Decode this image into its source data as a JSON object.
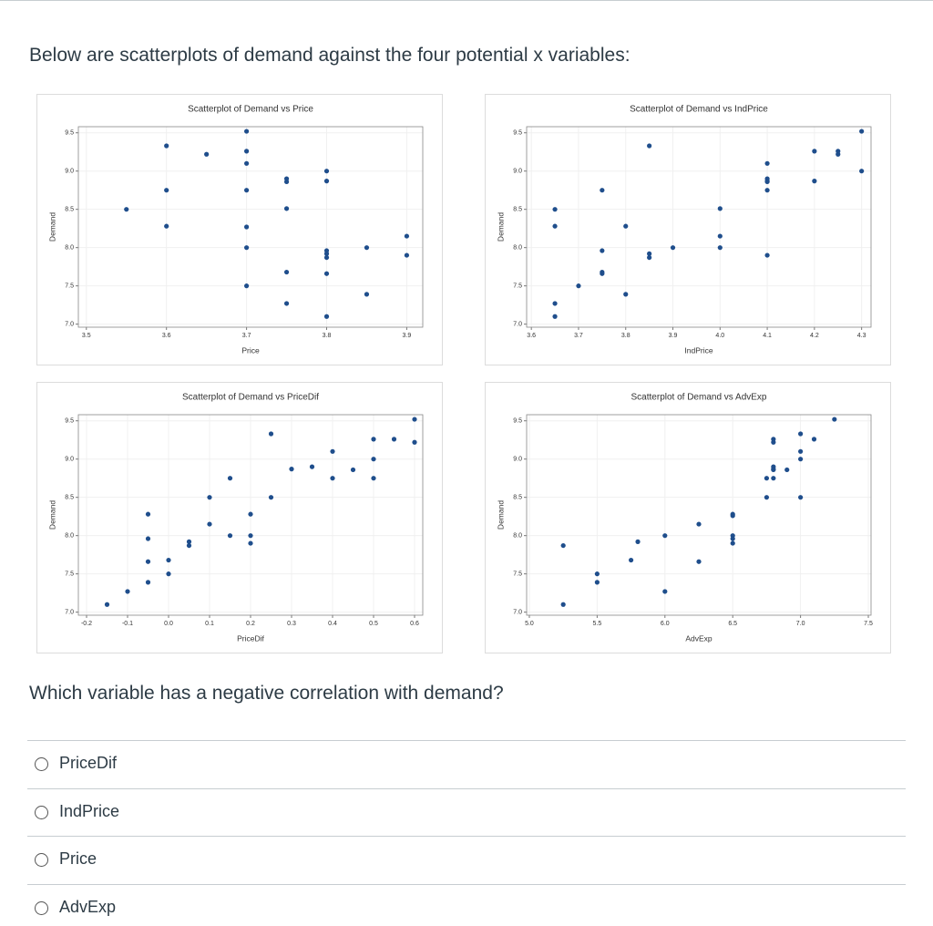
{
  "intro": "Below are scatterplots of demand against the four potential x variables:",
  "question": "Which variable has a negative correlation with demand?",
  "options": [
    "PriceDif",
    "IndPrice",
    "Price",
    "AdvExp"
  ],
  "chart_data": [
    {
      "type": "scatter",
      "title": "Scatterplot of Demand vs Price",
      "xlabel": "Price",
      "ylabel": "Demand",
      "color": "#1f4e8c",
      "grid": true,
      "x": [
        3.55,
        3.6,
        3.6,
        3.6,
        3.65,
        3.7,
        3.7,
        3.7,
        3.7,
        3.7,
        3.7,
        3.7,
        3.75,
        3.75,
        3.75,
        3.75,
        3.75,
        3.8,
        3.8,
        3.8,
        3.8,
        3.8,
        3.8,
        3.8,
        3.85,
        3.85,
        3.9,
        3.9
      ],
      "values": [
        8.5,
        9.33,
        8.75,
        8.28,
        9.22,
        9.52,
        9.26,
        9.1,
        8.75,
        8.27,
        8.0,
        7.5,
        8.9,
        8.86,
        8.51,
        7.68,
        7.27,
        9.0,
        8.87,
        7.96,
        7.92,
        7.87,
        7.66,
        7.1,
        8.0,
        7.39,
        8.15,
        7.9
      ],
      "xlim": [
        3.49,
        3.92
      ],
      "xticks": [
        3.5,
        3.6,
        3.7,
        3.8,
        3.9
      ],
      "ylim": [
        6.96,
        9.58
      ],
      "yticks": [
        {
          "value": 7,
          "label": "7.0"
        },
        7.5,
        {
          "value": 8,
          "label": "8.0"
        },
        8.5,
        {
          "value": 9,
          "label": "9.0"
        },
        9.5
      ]
    },
    {
      "type": "scatter",
      "title": "Scatterplot of Demand vs IndPrice",
      "xlabel": "IndPrice",
      "ylabel": "Demand",
      "color": "#1f4e8c",
      "grid": true,
      "x": [
        3.65,
        3.65,
        3.65,
        3.65,
        3.7,
        3.75,
        3.75,
        3.75,
        3.75,
        3.8,
        3.8,
        3.85,
        3.85,
        3.85,
        3.9,
        4.0,
        4.0,
        4.0,
        4.1,
        4.1,
        4.1,
        4.1,
        4.1,
        4.1,
        4.2,
        4.2,
        4.25,
        4.25,
        4.3,
        4.3
      ],
      "values": [
        8.5,
        8.28,
        7.27,
        7.1,
        7.5,
        8.75,
        7.96,
        7.68,
        7.66,
        8.28,
        7.39,
        9.33,
        7.92,
        7.87,
        8.0,
        8.51,
        8.15,
        8.0,
        9.1,
        8.9,
        8.87,
        8.86,
        8.75,
        7.9,
        9.26,
        8.87,
        9.26,
        9.22,
        9.52,
        9.0
      ],
      "xlim": [
        3.59,
        4.32
      ],
      "xticks": [
        3.6,
        3.7,
        3.8,
        3.9,
        {
          "value": 4,
          "label": "4.0"
        },
        4.1,
        4.2,
        4.3
      ],
      "ylim": [
        6.96,
        9.58
      ],
      "yticks": [
        {
          "value": 7,
          "label": "7.0"
        },
        7.5,
        {
          "value": 8,
          "label": "8.0"
        },
        8.5,
        {
          "value": 9,
          "label": "9.0"
        },
        9.5
      ]
    },
    {
      "type": "scatter",
      "title": "Scatterplot of Demand vs PriceDif",
      "xlabel": "PriceDif",
      "ylabel": "Demand",
      "color": "#1f4e8c",
      "grid": true,
      "x": [
        -0.15,
        -0.1,
        -0.05,
        -0.05,
        -0.05,
        -0.05,
        0.0,
        0.0,
        0.05,
        0.05,
        0.1,
        0.1,
        0.15,
        0.15,
        0.2,
        0.2,
        0.2,
        0.25,
        0.25,
        0.3,
        0.35,
        0.4,
        0.4,
        0.45,
        0.5,
        0.5,
        0.5,
        0.55,
        0.6,
        0.6
      ],
      "values": [
        7.1,
        7.27,
        7.39,
        7.66,
        7.96,
        8.28,
        7.5,
        7.68,
        7.92,
        7.87,
        8.15,
        8.5,
        8.0,
        8.75,
        8.28,
        8.0,
        7.9,
        9.33,
        8.5,
        8.87,
        8.9,
        9.1,
        8.75,
        8.86,
        9.26,
        9.0,
        8.75,
        9.26,
        9.52,
        9.22
      ],
      "xlim": [
        -0.22,
        0.62
      ],
      "xticks": [
        -0.2,
        -0.1,
        {
          "value": 0,
          "label": "0.0"
        },
        0.1,
        0.2,
        0.3,
        0.4,
        0.5,
        0.6
      ],
      "ylim": [
        6.96,
        9.58
      ],
      "yticks": [
        {
          "value": 7,
          "label": "7.0"
        },
        7.5,
        {
          "value": 8,
          "label": "8.0"
        },
        8.5,
        {
          "value": 9,
          "label": "9.0"
        },
        9.5
      ]
    },
    {
      "type": "scatter",
      "title": "Scatterplot of Demand vs AdvExp",
      "xlabel": "AdvExp",
      "ylabel": "Demand",
      "color": "#1f4e8c",
      "grid": true,
      "x": [
        5.25,
        5.25,
        5.5,
        5.5,
        5.75,
        5.8,
        6.0,
        6.0,
        6.25,
        6.25,
        6.5,
        6.5,
        6.5,
        6.5,
        6.5,
        6.75,
        6.75,
        6.8,
        6.8,
        6.8,
        6.8,
        6.8,
        6.8,
        6.9,
        7.0,
        7.0,
        7.0,
        7.0,
        7.1,
        7.25
      ],
      "values": [
        7.87,
        7.1,
        7.5,
        7.39,
        7.68,
        7.92,
        8.0,
        7.27,
        8.15,
        7.66,
        8.28,
        8.26,
        8.0,
        7.96,
        7.9,
        8.75,
        8.5,
        9.26,
        9.22,
        8.9,
        8.87,
        8.86,
        8.75,
        8.86,
        9.33,
        9.1,
        9.0,
        8.5,
        9.26,
        9.52
      ],
      "xlim": [
        4.98,
        7.52
      ],
      "xticks": [
        {
          "value": 5,
          "label": "5.0"
        },
        5.5,
        {
          "value": 6,
          "label": "6.0"
        },
        6.5,
        {
          "value": 7,
          "label": "7.0"
        },
        7.5
      ],
      "ylim": [
        6.96,
        9.58
      ],
      "yticks": [
        {
          "value": 7,
          "label": "7.0"
        },
        7.5,
        {
          "value": 8,
          "label": "8.0"
        },
        8.5,
        {
          "value": 9,
          "label": "9.0"
        },
        9.5
      ]
    }
  ]
}
